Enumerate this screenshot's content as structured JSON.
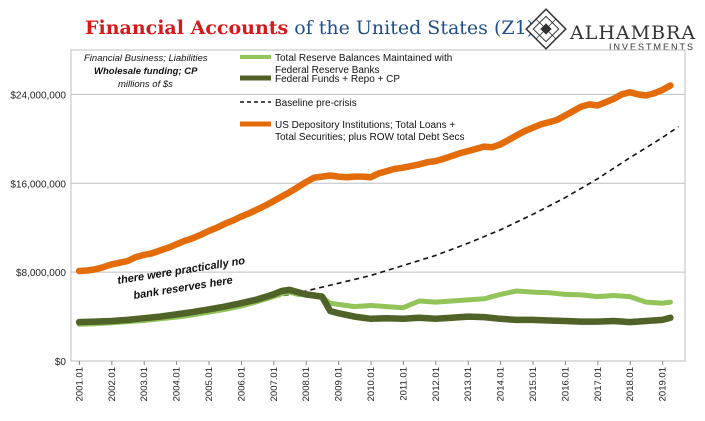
{
  "chart_data": {
    "type": "line",
    "title_red": "Financial Accounts",
    "title_rest": "of the United States (Z1)",
    "note_lines": [
      "Financial Business; Liabilities",
      "Wholesale funding; CP",
      "millions of $s"
    ],
    "annotation": [
      "there were practically no",
      "bank reserves here"
    ],
    "logo": {
      "name": "ALHAMBRA",
      "sub": "INVESTMENTS"
    },
    "ylim": [
      0,
      28000000
    ],
    "y_ticks": [
      {
        "value": 0,
        "label": "$0"
      },
      {
        "value": 8000000,
        "label": "$8,000,000"
      },
      {
        "value": 16000000,
        "label": "$16,000,000"
      },
      {
        "value": 24000000,
        "label": "$24,000,000"
      }
    ],
    "x_ticks": [
      "2001.01",
      "2002.01",
      "2003.01",
      "2004.01",
      "2005.01",
      "2006.01",
      "2007.01",
      "2008.01",
      "2009.01",
      "2010.01",
      "2011.01",
      "2012.01",
      "2013.01",
      "2014.01",
      "2015.01",
      "2016.01",
      "2017.01",
      "2018.01",
      "2019.01"
    ],
    "colors": {
      "orange": "#e36c09",
      "light_green": "#92c45a",
      "dark_green": "#4f6228",
      "dashed": "#111111",
      "grid": "#bfbfbf"
    },
    "series": [
      {
        "key": "orange",
        "name": "US Depository Institutions; Total Loans + Total Securities; plus ROW total Debt Secs",
        "legend_lines": [
          "US Depository Institutions; Total Loans +",
          "Total Securities; plus ROW total Debt Secs"
        ],
        "style": "thick",
        "points": [
          [
            2001.0,
            8.1
          ],
          [
            2001.25,
            8.15
          ],
          [
            2001.5,
            8.25
          ],
          [
            2001.75,
            8.45
          ],
          [
            2002.0,
            8.7
          ],
          [
            2002.25,
            8.85
          ],
          [
            2002.5,
            9.0
          ],
          [
            2002.75,
            9.35
          ],
          [
            2003.0,
            9.55
          ],
          [
            2003.25,
            9.7
          ],
          [
            2003.5,
            9.95
          ],
          [
            2003.75,
            10.2
          ],
          [
            2004.0,
            10.5
          ],
          [
            2004.25,
            10.8
          ],
          [
            2004.5,
            11.05
          ],
          [
            2004.75,
            11.35
          ],
          [
            2005.0,
            11.7
          ],
          [
            2005.25,
            12.0
          ],
          [
            2005.5,
            12.35
          ],
          [
            2005.75,
            12.65
          ],
          [
            2006.0,
            13.0
          ],
          [
            2006.25,
            13.3
          ],
          [
            2006.5,
            13.65
          ],
          [
            2006.75,
            14.0
          ],
          [
            2007.0,
            14.4
          ],
          [
            2007.25,
            14.8
          ],
          [
            2007.5,
            15.2
          ],
          [
            2007.75,
            15.65
          ],
          [
            2008.0,
            16.1
          ],
          [
            2008.25,
            16.5
          ],
          [
            2008.5,
            16.6
          ],
          [
            2008.75,
            16.7
          ],
          [
            2009.0,
            16.6
          ],
          [
            2009.25,
            16.55
          ],
          [
            2009.5,
            16.6
          ],
          [
            2009.75,
            16.6
          ],
          [
            2010.0,
            16.55
          ],
          [
            2010.25,
            16.9
          ],
          [
            2010.5,
            17.1
          ],
          [
            2010.75,
            17.3
          ],
          [
            2011.0,
            17.4
          ],
          [
            2011.25,
            17.55
          ],
          [
            2011.5,
            17.7
          ],
          [
            2011.75,
            17.9
          ],
          [
            2012.0,
            18.0
          ],
          [
            2012.25,
            18.2
          ],
          [
            2012.5,
            18.45
          ],
          [
            2012.75,
            18.7
          ],
          [
            2013.0,
            18.9
          ],
          [
            2013.25,
            19.1
          ],
          [
            2013.5,
            19.3
          ],
          [
            2013.75,
            19.25
          ],
          [
            2014.0,
            19.5
          ],
          [
            2014.25,
            19.9
          ],
          [
            2014.5,
            20.3
          ],
          [
            2014.75,
            20.7
          ],
          [
            2015.0,
            21.0
          ],
          [
            2015.25,
            21.3
          ],
          [
            2015.5,
            21.5
          ],
          [
            2015.75,
            21.7
          ],
          [
            2016.0,
            22.1
          ],
          [
            2016.25,
            22.5
          ],
          [
            2016.5,
            22.9
          ],
          [
            2016.75,
            23.1
          ],
          [
            2017.0,
            23.0
          ],
          [
            2017.25,
            23.3
          ],
          [
            2017.5,
            23.6
          ],
          [
            2017.75,
            24.0
          ],
          [
            2018.0,
            24.2
          ],
          [
            2018.25,
            24.0
          ],
          [
            2018.5,
            23.9
          ],
          [
            2018.75,
            24.1
          ],
          [
            2019.0,
            24.4
          ],
          [
            2019.25,
            24.8
          ]
        ]
      },
      {
        "key": "dashed",
        "name": "Baseline pre-crisis",
        "legend_lines": [
          "Baseline pre-crisis"
        ],
        "style": "dashed",
        "points": [
          [
            2001.0,
            3.4
          ],
          [
            2002.0,
            3.6
          ],
          [
            2003.0,
            3.9
          ],
          [
            2004.0,
            4.2
          ],
          [
            2005.0,
            4.6
          ],
          [
            2006.0,
            5.1
          ],
          [
            2007.0,
            5.7
          ],
          [
            2008.0,
            6.3
          ],
          [
            2009.0,
            7.0
          ],
          [
            2010.0,
            7.7
          ],
          [
            2011.0,
            8.6
          ],
          [
            2012.0,
            9.5
          ],
          [
            2013.0,
            10.6
          ],
          [
            2014.0,
            11.8
          ],
          [
            2015.0,
            13.2
          ],
          [
            2016.0,
            14.7
          ],
          [
            2017.0,
            16.4
          ],
          [
            2018.0,
            18.3
          ],
          [
            2019.0,
            20.1
          ],
          [
            2019.5,
            21.1
          ]
        ]
      },
      {
        "key": "light_green",
        "name": "Total Reserve Balances Maintained with Federal Reserve Banks",
        "legend_lines": [
          "Total Reserve Balances Maintained with",
          "Federal Reserve Banks"
        ],
        "style": "thick",
        "points": [
          [
            2001.0,
            3.3
          ],
          [
            2001.5,
            3.35
          ],
          [
            2002.0,
            3.45
          ],
          [
            2002.5,
            3.55
          ],
          [
            2003.0,
            3.65
          ],
          [
            2003.5,
            3.8
          ],
          [
            2004.0,
            3.95
          ],
          [
            2004.5,
            4.15
          ],
          [
            2005.0,
            4.4
          ],
          [
            2005.5,
            4.65
          ],
          [
            2006.0,
            4.95
          ],
          [
            2006.5,
            5.35
          ],
          [
            2007.0,
            5.8
          ],
          [
            2007.25,
            6.05
          ],
          [
            2007.5,
            6.2
          ],
          [
            2007.75,
            6.0
          ],
          [
            2008.0,
            5.95
          ],
          [
            2008.25,
            5.85
          ],
          [
            2008.5,
            5.75
          ],
          [
            2008.75,
            5.2
          ],
          [
            2009.0,
            5.1
          ],
          [
            2009.5,
            4.9
          ],
          [
            2010.0,
            5.0
          ],
          [
            2010.5,
            4.9
          ],
          [
            2011.0,
            4.8
          ],
          [
            2011.5,
            5.4
          ],
          [
            2012.0,
            5.3
          ],
          [
            2012.5,
            5.4
          ],
          [
            2013.0,
            5.5
          ],
          [
            2013.5,
            5.6
          ],
          [
            2014.0,
            6.0
          ],
          [
            2014.5,
            6.3
          ],
          [
            2015.0,
            6.2
          ],
          [
            2015.5,
            6.15
          ],
          [
            2016.0,
            6.0
          ],
          [
            2016.5,
            5.95
          ],
          [
            2017.0,
            5.8
          ],
          [
            2017.5,
            5.9
          ],
          [
            2018.0,
            5.8
          ],
          [
            2018.5,
            5.3
          ],
          [
            2019.0,
            5.2
          ],
          [
            2019.25,
            5.3
          ]
        ]
      },
      {
        "key": "dark_green",
        "name": "Federal Funds + Repo + CP",
        "legend_lines": [
          "Federal Funds + Repo + CP"
        ],
        "style": "thick",
        "points": [
          [
            2001.0,
            3.5
          ],
          [
            2001.5,
            3.55
          ],
          [
            2002.0,
            3.6
          ],
          [
            2002.5,
            3.7
          ],
          [
            2003.0,
            3.85
          ],
          [
            2003.5,
            4.0
          ],
          [
            2004.0,
            4.2
          ],
          [
            2004.5,
            4.4
          ],
          [
            2005.0,
            4.65
          ],
          [
            2005.5,
            4.9
          ],
          [
            2006.0,
            5.2
          ],
          [
            2006.5,
            5.55
          ],
          [
            2007.0,
            6.0
          ],
          [
            2007.25,
            6.3
          ],
          [
            2007.5,
            6.4
          ],
          [
            2007.75,
            6.2
          ],
          [
            2008.0,
            6.0
          ],
          [
            2008.25,
            5.9
          ],
          [
            2008.5,
            5.8
          ],
          [
            2008.75,
            4.5
          ],
          [
            2009.0,
            4.3
          ],
          [
            2009.5,
            4.0
          ],
          [
            2010.0,
            3.8
          ],
          [
            2010.5,
            3.85
          ],
          [
            2011.0,
            3.8
          ],
          [
            2011.5,
            3.9
          ],
          [
            2012.0,
            3.8
          ],
          [
            2012.5,
            3.9
          ],
          [
            2013.0,
            4.0
          ],
          [
            2013.5,
            3.95
          ],
          [
            2014.0,
            3.8
          ],
          [
            2014.5,
            3.7
          ],
          [
            2015.0,
            3.7
          ],
          [
            2015.5,
            3.65
          ],
          [
            2016.0,
            3.6
          ],
          [
            2016.5,
            3.55
          ],
          [
            2017.0,
            3.55
          ],
          [
            2017.5,
            3.6
          ],
          [
            2018.0,
            3.5
          ],
          [
            2018.5,
            3.6
          ],
          [
            2019.0,
            3.7
          ],
          [
            2019.25,
            3.9
          ]
        ]
      }
    ]
  }
}
